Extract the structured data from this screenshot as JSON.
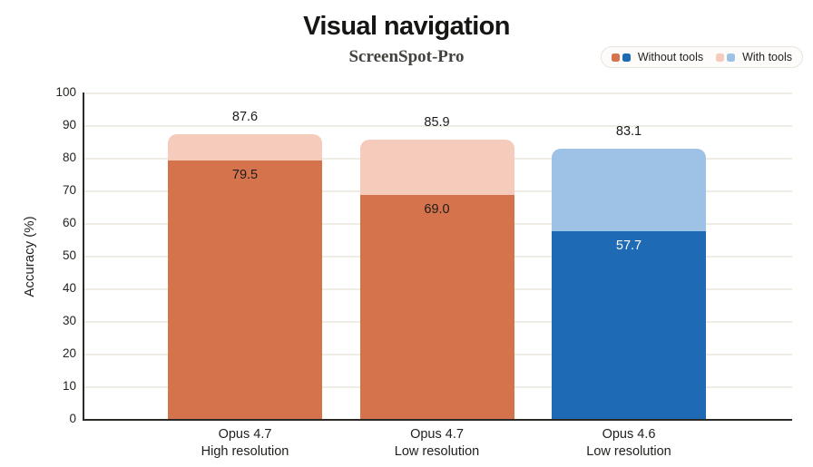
{
  "title": "Visual navigation",
  "subtitle": "ScreenSpot-Pro",
  "legend": {
    "items": [
      {
        "label": "Without tools",
        "swatches": [
          "#d4734c",
          "#1e6ab4"
        ]
      },
      {
        "label": "With tools",
        "swatches": [
          "#f5ccbb",
          "#9ec2e6"
        ]
      }
    ]
  },
  "chart_data": {
    "type": "bar",
    "variant": "stacked-overlay",
    "title": "Visual navigation",
    "subtitle": "ScreenSpot-Pro",
    "categories": [
      [
        "Opus 4.7",
        "High resolution"
      ],
      [
        "Opus 4.7",
        "Low resolution"
      ],
      [
        "Opus 4.6",
        "Low resolution"
      ]
    ],
    "series": [
      {
        "name": "Without tools",
        "values": [
          79.5,
          69.0,
          57.7
        ],
        "colors": [
          "#d4734c",
          "#d4734c",
          "#1e6ab4"
        ]
      },
      {
        "name": "With tools",
        "values": [
          87.6,
          85.9,
          83.1
        ],
        "colors": [
          "#f5ccbb",
          "#f5ccbb",
          "#9ec2e6"
        ]
      }
    ],
    "inner_label_colors": [
      "#1c1c1a",
      "#1c1c1a",
      "#ffffff"
    ],
    "ylabel": "Accuracy (%)",
    "xlabel": "",
    "ylim": [
      0,
      100
    ],
    "ytick_step": 10,
    "grid": true,
    "legend_position": "top-right",
    "colors": {
      "grid": "#efece6",
      "axis": "#2b2a27",
      "background": "#ffffff"
    }
  }
}
